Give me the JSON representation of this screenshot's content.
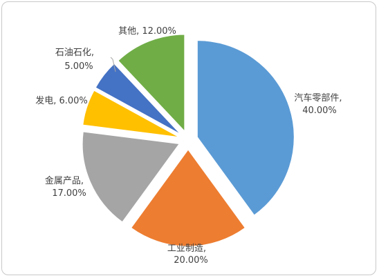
{
  "chart_data": {
    "type": "pie",
    "title": "",
    "exploded": true,
    "start": "12 o'clock, clockwise",
    "slices": [
      {
        "name": "汽车零部件",
        "percent_label": "40.00%",
        "value": 40.0,
        "color": "#5b9bd5"
      },
      {
        "name": "工业制造",
        "percent_label": "20.00%",
        "value": 20.0,
        "color": "#ed7d31"
      },
      {
        "name": "金属产品",
        "percent_label": "17.00%",
        "value": 17.0,
        "color": "#a5a5a5"
      },
      {
        "name": "发电",
        "percent_label": "6.00%",
        "value": 6.0,
        "color": "#ffc000"
      },
      {
        "name": "石油石化",
        "percent_label": "5.00%",
        "value": 5.0,
        "color": "#4472c4"
      },
      {
        "name": "其他",
        "percent_label": "12.00%",
        "value": 12.0,
        "color": "#70ad47"
      }
    ]
  }
}
